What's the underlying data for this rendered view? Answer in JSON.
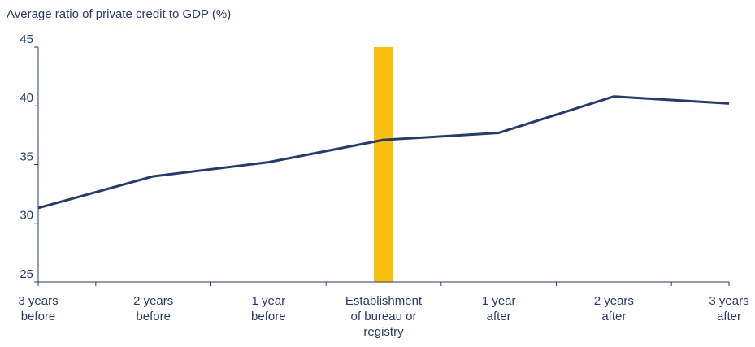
{
  "chart_data": {
    "type": "line",
    "title": "Average ratio of private credit to GDP (%)",
    "categories": [
      "3 years\nbefore",
      "2 years\nbefore",
      "1 year\nbefore",
      "Establishment\nof bureau or\nregistry",
      "1 year\nafter",
      "2 years\nafter",
      "3 years\nafter"
    ],
    "series": [
      {
        "name": "Average ratio of private credit to GDP",
        "color": "#263a70",
        "values": [
          31.3,
          34.0,
          35.2,
          37.1,
          37.7,
          40.8,
          40.2
        ]
      }
    ],
    "ylim": [
      25,
      45
    ],
    "yticks": [
      25,
      30,
      35,
      40,
      45
    ],
    "highlight_color": "#f9bf0f"
  }
}
